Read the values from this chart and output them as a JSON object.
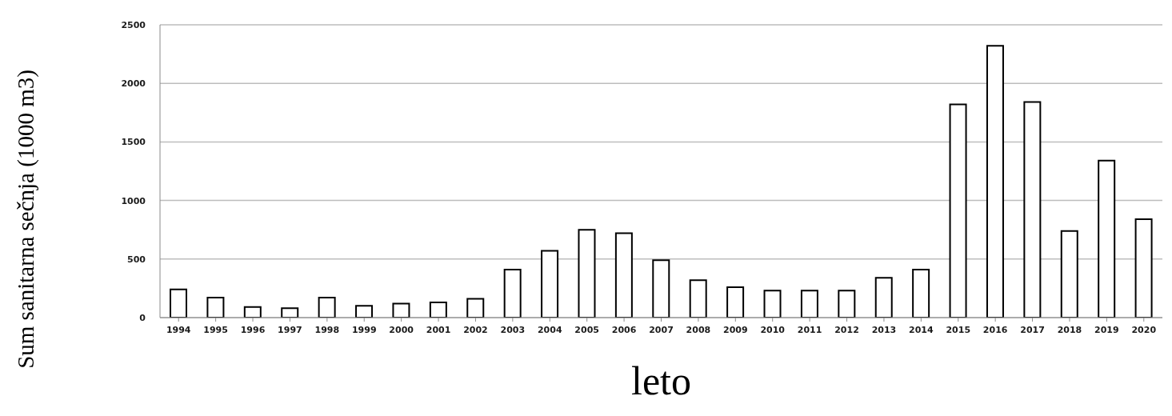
{
  "chart_data": {
    "type": "bar",
    "xlabel": "leto",
    "ylabel": "Sum sanitarna sečnja (1000 m3)",
    "categories": [
      "1994",
      "1995",
      "1996",
      "1997",
      "1998",
      "1999",
      "2000",
      "2001",
      "2002",
      "2003",
      "2004",
      "2005",
      "2006",
      "2007",
      "2008",
      "2009",
      "2010",
      "2011",
      "2012",
      "2013",
      "2014",
      "2015",
      "2016",
      "2017",
      "2018",
      "2019",
      "2020"
    ],
    "values": [
      240,
      170,
      90,
      80,
      170,
      100,
      120,
      130,
      160,
      410,
      570,
      750,
      720,
      490,
      320,
      260,
      230,
      230,
      230,
      340,
      410,
      1820,
      2320,
      1840,
      740,
      1340,
      840
    ],
    "color": "#ffffff",
    "ylim": [
      0,
      2500
    ],
    "yticks": [
      0,
      500,
      1000,
      1500,
      2000,
      2500
    ],
    "grid": "y"
  }
}
